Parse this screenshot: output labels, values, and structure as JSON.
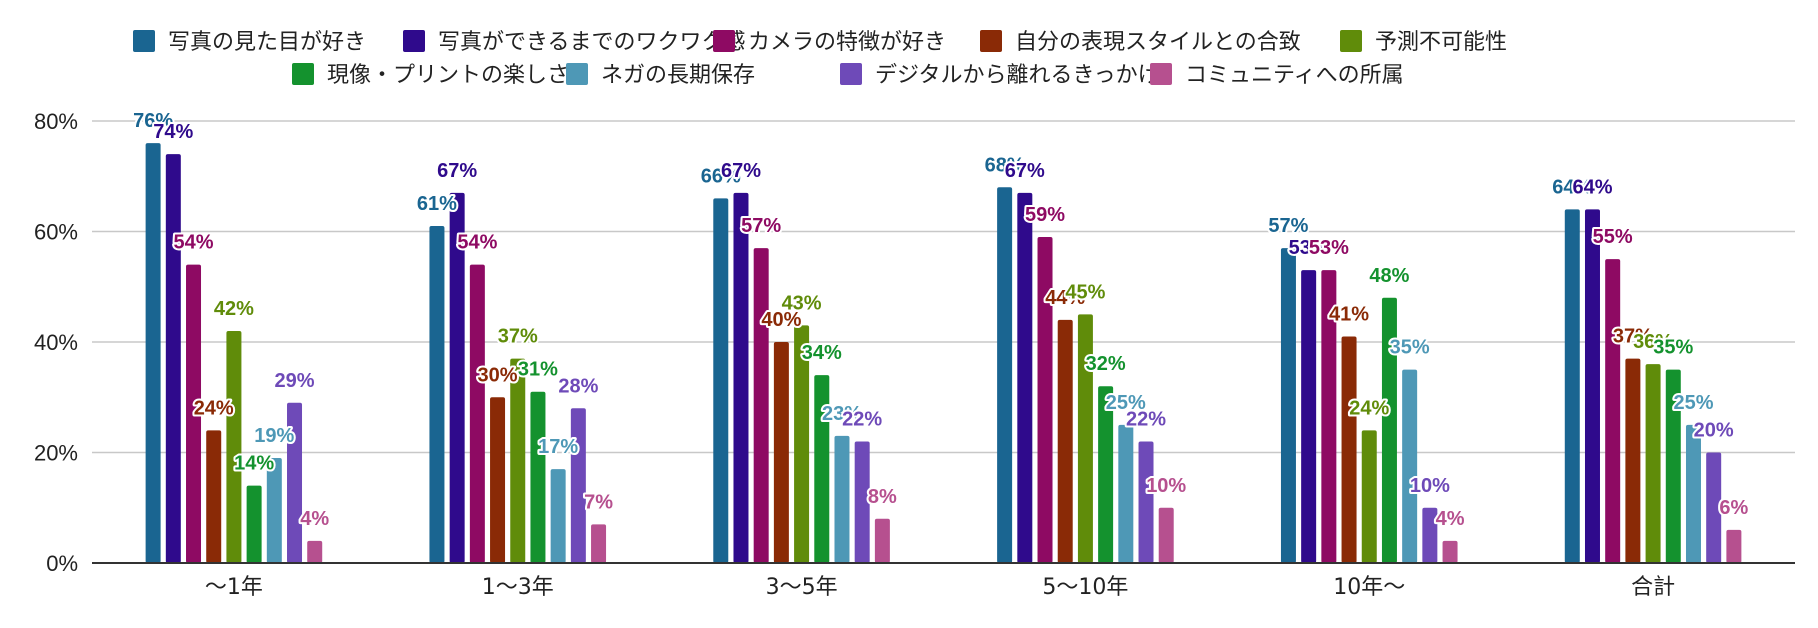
{
  "chart_data": {
    "type": "bar",
    "categories": [
      "〜1年",
      "1〜3年",
      "3〜5年",
      "5〜10年",
      "10年〜",
      "合計"
    ],
    "ylim": [
      0,
      80
    ],
    "yticks": [
      0,
      20,
      40,
      60,
      80
    ],
    "ytick_labels": [
      "0%",
      "20%",
      "40%",
      "60%",
      "80%"
    ],
    "grid": true,
    "legend_position": "top",
    "series": [
      {
        "name": "写真の見た目が好き",
        "color": "#1a6591",
        "values": [
          76,
          61,
          66,
          68,
          57,
          64
        ]
      },
      {
        "name": "写真ができるまでのワクワク感",
        "color": "#2f0a8c",
        "values": [
          74,
          67,
          67,
          67,
          53,
          64
        ]
      },
      {
        "name": "カメラの特徴が好き",
        "color": "#8e0a63",
        "values": [
          54,
          54,
          57,
          59,
          53,
          55
        ]
      },
      {
        "name": "自分の表現スタイルとの合致",
        "color": "#8a2a06",
        "values": [
          24,
          30,
          40,
          44,
          41,
          37
        ]
      },
      {
        "name": "予測不可能性",
        "color": "#608c0a",
        "values": [
          42,
          37,
          43,
          45,
          24,
          36
        ]
      },
      {
        "name": "現像・プリントの楽しさ",
        "color": "#14922e",
        "values": [
          14,
          31,
          34,
          32,
          48,
          35
        ]
      },
      {
        "name": "ネガの長期保存",
        "color": "#4e98b6",
        "values": [
          19,
          17,
          23,
          25,
          35,
          25
        ]
      },
      {
        "name": "デジタルから離れるきっかけ",
        "color": "#6e4ab8",
        "values": [
          29,
          28,
          22,
          22,
          10,
          20
        ]
      },
      {
        "name": "コミュニティへの所属",
        "color": "#b6508f",
        "values": [
          4,
          7,
          8,
          10,
          4,
          6
        ]
      }
    ]
  }
}
